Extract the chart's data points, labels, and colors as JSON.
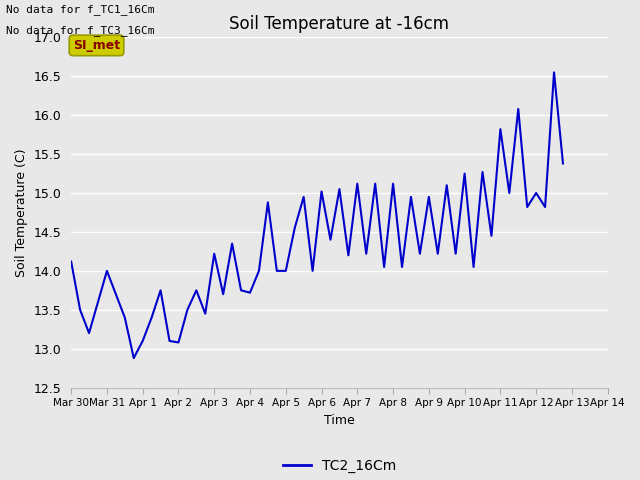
{
  "title": "Soil Temperature at -16cm",
  "xlabel": "Time",
  "ylabel": "Soil Temperature (C)",
  "ylim": [
    12.5,
    17.0
  ],
  "line_color": "#0000cc",
  "line_width": 1.5,
  "background_color": "#e8e8e8",
  "plot_bg_color": "#e8e8e8",
  "grid_color": "#ffffff",
  "annotations": [
    "No data for f_TC1_16Cm",
    "No data for f_TC3_16Cm"
  ],
  "legend_label": "TC2_16Cm",
  "legend_box_color": "#cccc00",
  "legend_text_color": "#880000",
  "legend_box_label": "SI_met",
  "x_tick_labels": [
    "Mar 30",
    "Mar 31",
    "Apr 1",
    "Apr 2",
    "Apr 3",
    "Apr 4",
    "Apr 5",
    "Apr 6",
    "Apr 7",
    "Apr 8",
    "Apr 9",
    "Apr 10",
    "Apr 11",
    "Apr 12",
    "Apr 13",
    "Apr 14"
  ],
  "yticks": [
    12.5,
    13.0,
    13.5,
    14.0,
    14.5,
    15.0,
    15.5,
    16.0,
    16.5,
    17.0
  ],
  "data_points": [
    [
      0.0,
      14.12
    ],
    [
      0.25,
      13.5
    ],
    [
      0.5,
      13.2
    ],
    [
      0.75,
      13.6
    ],
    [
      1.0,
      14.0
    ],
    [
      1.25,
      13.7
    ],
    [
      1.5,
      13.4
    ],
    [
      1.75,
      12.88
    ],
    [
      2.0,
      13.1
    ],
    [
      2.25,
      13.4
    ],
    [
      2.5,
      13.75
    ],
    [
      2.75,
      13.1
    ],
    [
      3.0,
      13.08
    ],
    [
      3.25,
      13.5
    ],
    [
      3.5,
      13.75
    ],
    [
      3.75,
      13.45
    ],
    [
      4.0,
      14.22
    ],
    [
      4.25,
      13.7
    ],
    [
      4.5,
      14.35
    ],
    [
      4.75,
      13.75
    ],
    [
      5.0,
      13.72
    ],
    [
      5.25,
      14.0
    ],
    [
      5.5,
      14.88
    ],
    [
      5.75,
      14.0
    ],
    [
      6.0,
      14.0
    ],
    [
      6.25,
      14.55
    ],
    [
      6.5,
      14.95
    ],
    [
      6.75,
      14.0
    ],
    [
      7.0,
      15.02
    ],
    [
      7.25,
      14.4
    ],
    [
      7.5,
      15.05
    ],
    [
      7.75,
      14.2
    ],
    [
      8.0,
      15.12
    ],
    [
      8.25,
      14.22
    ],
    [
      8.5,
      15.12
    ],
    [
      8.75,
      14.05
    ],
    [
      9.0,
      15.12
    ],
    [
      9.25,
      14.05
    ],
    [
      9.5,
      14.95
    ],
    [
      9.75,
      14.22
    ],
    [
      10.0,
      14.95
    ],
    [
      10.25,
      14.22
    ],
    [
      10.5,
      15.1
    ],
    [
      10.75,
      14.22
    ],
    [
      11.0,
      15.25
    ],
    [
      11.25,
      14.05
    ],
    [
      11.5,
      15.27
    ],
    [
      11.75,
      14.45
    ],
    [
      12.0,
      15.82
    ],
    [
      12.25,
      15.0
    ],
    [
      12.5,
      16.08
    ],
    [
      12.75,
      14.82
    ],
    [
      13.0,
      15.0
    ],
    [
      13.25,
      14.82
    ],
    [
      13.5,
      16.55
    ],
    [
      13.75,
      15.38
    ]
  ]
}
